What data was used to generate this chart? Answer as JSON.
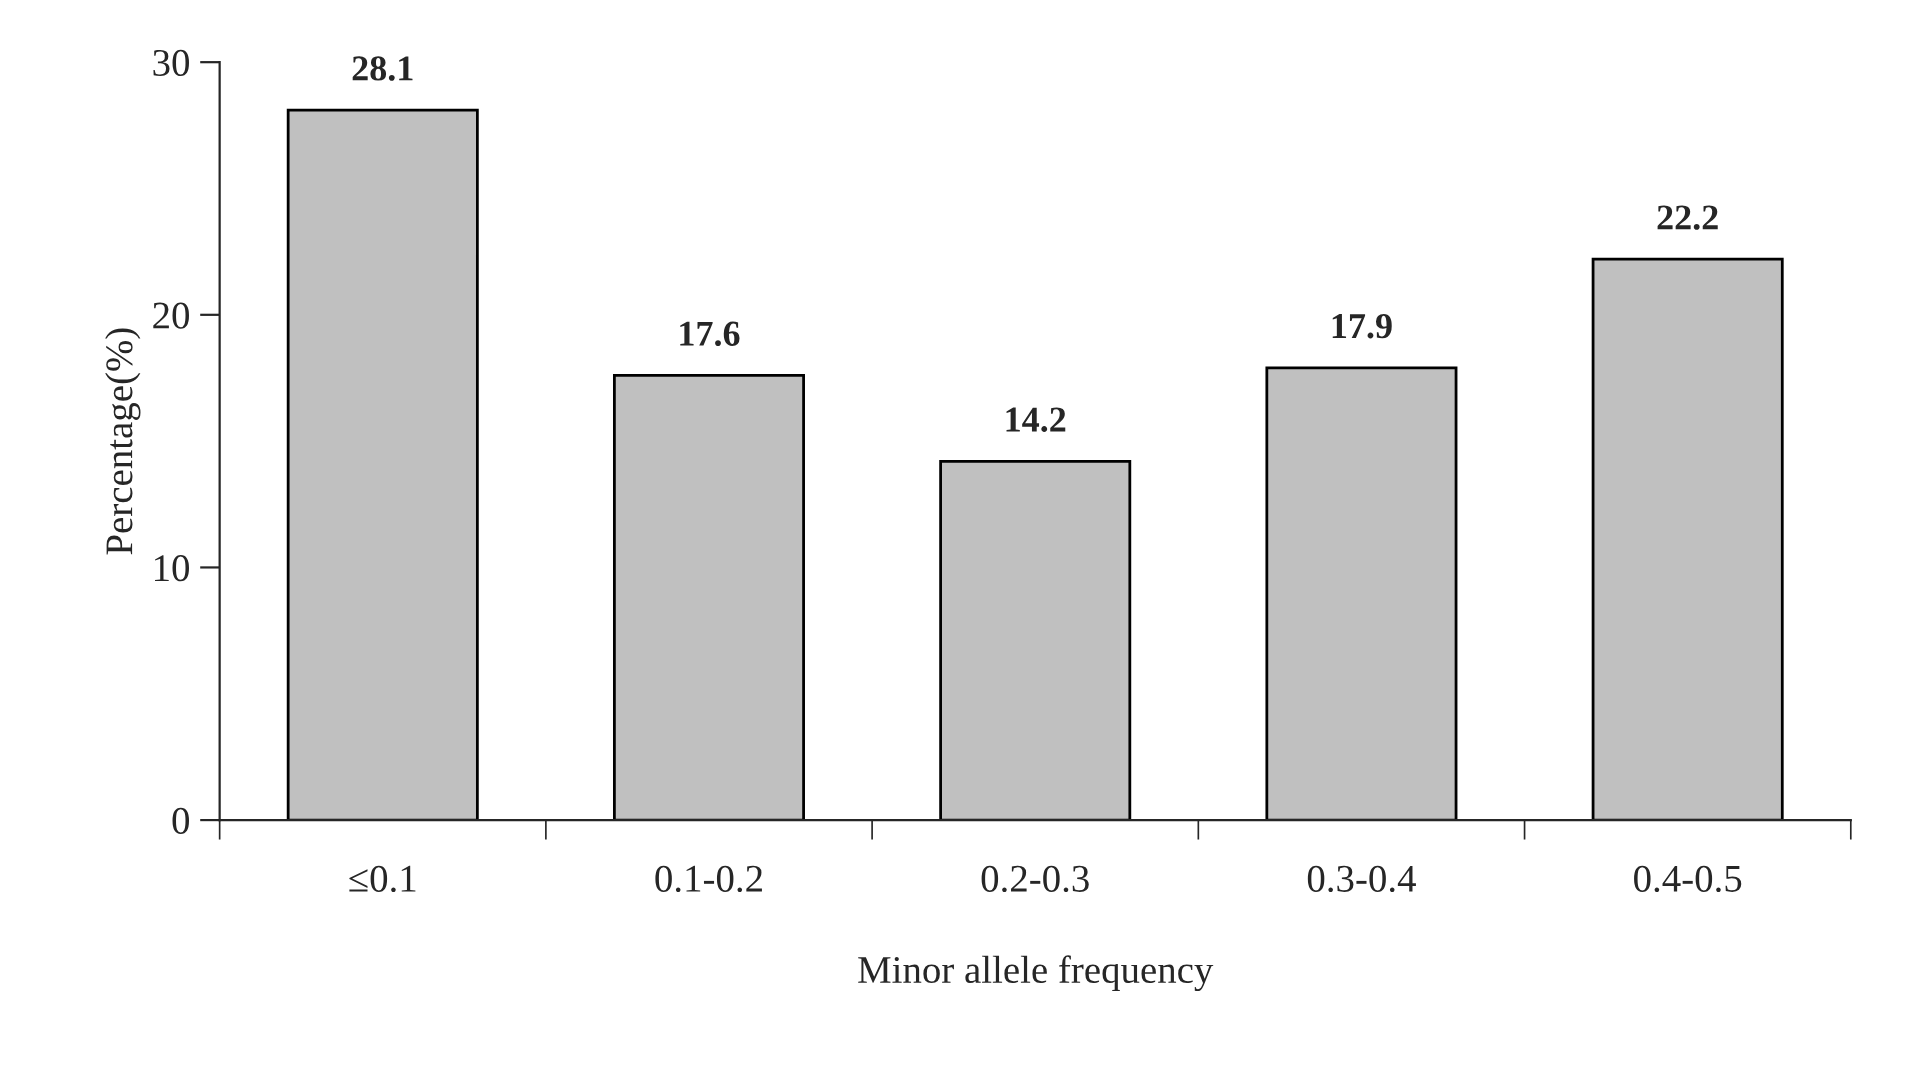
{
  "chart_data": {
    "type": "bar",
    "xlabel": "Minor allele frequency",
    "ylabel": "Percentage(%)",
    "categories": [
      "≤0.1",
      "0.1-0.2",
      "0.2-0.3",
      "0.3-0.4",
      "0.4-0.5"
    ],
    "values": [
      28.1,
      17.6,
      14.2,
      17.9,
      22.2
    ],
    "color": "#c0c0c0",
    "ylim": [
      0,
      30
    ],
    "yticks": [
      0,
      10,
      20,
      30
    ],
    "data_labels": true,
    "grid": false,
    "legend": false
  }
}
